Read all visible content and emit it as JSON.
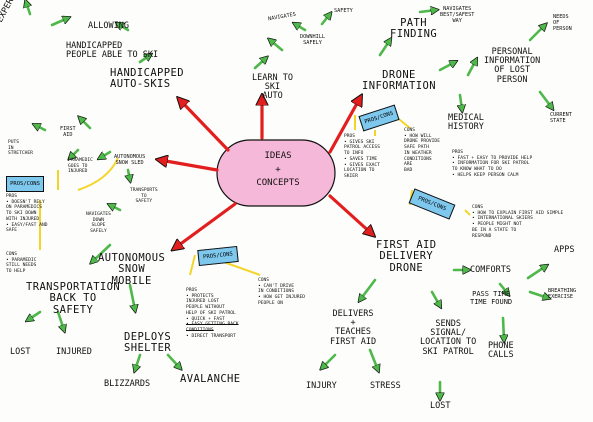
{
  "center": {
    "line1": "Ideas",
    "line2": "+",
    "line3": "Concepts"
  },
  "colors": {
    "center_fill": "#f5b8d8",
    "red_arrow": "#e31e1e",
    "green_arrow": "#4fb84a",
    "pros_box": "#7ec8ee",
    "yellow_line": "#f3d52a"
  },
  "experience": "Experience",
  "allowing": "Allowing",
  "handicapped_people": {
    "line1": "Handicapped",
    "line2": "People able to ski"
  },
  "handicapped_ski": {
    "line1": "Handicapped",
    "line2": "Auto-Skis"
  },
  "navigates": "Navigates",
  "safety": "Safety",
  "downhill_safely": {
    "line1": "Downhill",
    "line2": "Safely"
  },
  "learn_to_ski": {
    "line1": "Learn to",
    "line2": "Ski",
    "line3": "Auto"
  },
  "path_finding": {
    "line1": "Path",
    "line2": "Finding"
  },
  "navigates_best": {
    "line1": "Navigates",
    "line2": "Best/Safest",
    "line3": "Way"
  },
  "needs_of_person": {
    "line1": "Needs",
    "line2": "of",
    "line3": "Person"
  },
  "personal_info": {
    "line1": "Personal",
    "line2": "Information",
    "line3": "of Lost",
    "line4": "Person"
  },
  "current_state": {
    "line1": "Current",
    "line2": "State"
  },
  "medical_history": {
    "line1": "Medical",
    "line2": "History"
  },
  "drone_info": {
    "line1": "Drone",
    "line2": "Information"
  },
  "drone_pros_cons": "Pros/Cons",
  "drone_pros": {
    "title": "Pros",
    "items": [
      "• Gives Ski",
      "Patrol Access",
      "To Info",
      "• Saves Time",
      "• Gives Exact",
      "Location To",
      "Skier"
    ]
  },
  "drone_cons": {
    "title": "Cons",
    "items": [
      "• How Will",
      "Drone Provide",
      "Safe Path",
      "In Weather",
      "Conditions",
      "Are",
      "Bad"
    ]
  },
  "medical_pros": {
    "title": "Pros",
    "items": [
      "• Fast + Easy To Provide Help",
      "• Information For Ski Patrol",
      "To Know What To Do",
      "• Helps Keep Person Calm"
    ]
  },
  "fa_pros_cons": "Pros/Cons",
  "fa_cons": {
    "title": "Cons",
    "items": [
      "• How To Explain First Aid Simple",
      "• International Skiers",
      "• People Might Not",
      "Be In A State To",
      "Respond"
    ]
  },
  "first_aid": {
    "line1": "First",
    "line2": "Aid"
  },
  "puts_stretcher": {
    "line1": "Puts",
    "line2": "In",
    "line3": "Stretcher"
  },
  "paramedic": {
    "line1": "Paramedic",
    "line2": "Goes To",
    "line3": "Injured"
  },
  "autonomous_sled": {
    "line1": "Autonomous",
    "line2": "Snow Sled"
  },
  "transports_safety": {
    "line1": "Transports",
    "line2": "To",
    "line3": "Safety"
  },
  "navigates_down": {
    "line1": "Navigates",
    "line2": "Down",
    "line3": "Slope",
    "line4": "Safely"
  },
  "sled_pros_cons": "Pros/Cons",
  "sled_pros": {
    "title": "Pros",
    "items": [
      "• Doesn't Rely",
      "On Paramedics",
      "To Ski Down",
      "With Injured",
      "• Easy/Fast And",
      "Safe"
    ]
  },
  "sled_cons": {
    "title": "Cons",
    "items": [
      "• Paramedic",
      "Still Needs",
      "To Help"
    ]
  },
  "autonomous_mobile": {
    "line1": "Autonomous",
    "line2": "Snow",
    "line3": "Mobile"
  },
  "transportation": {
    "line1": "Transportation",
    "line2": "Back to",
    "line3": "Safety"
  },
  "lost_left": "Lost",
  "injured_left": "Injured",
  "mobile_pros_cons": "Pros/Cons",
  "mobile_pros": {
    "title": "Pros",
    "items": [
      "• Protects",
      "Injured Lost",
      "People Without",
      "Help Of Ski Patrol",
      "• Quick + Fast",
      "• Easy Getting Back",
      "Conditions",
      "• Direct Transport"
    ]
  },
  "mobile_cons": {
    "title": "Cons",
    "items": [
      "• Can't Drive",
      "In Conditions",
      "• How Get Injured",
      "People On"
    ]
  },
  "deploys_shelter": {
    "line1": "Deploys",
    "line2": "Shelter"
  },
  "blizzards": "Blizzards",
  "avalanche": "Avalanche",
  "first_aid_drone": {
    "line1": "First Aid",
    "line2": "Delivery",
    "line3": "Drone"
  },
  "delivers": {
    "line1": "Delivers",
    "line2": "+",
    "line3": "Teaches",
    "line4": "First Aid"
  },
  "injury": "Injury",
  "stress": "Stress",
  "sends_signal": {
    "line1": "Sends",
    "line2": "Signal/",
    "line3": "Location to",
    "line4": "Ski Patrol"
  },
  "lost_bottom": "Lost",
  "comforts": "Comforts",
  "apps": "Apps",
  "pass_time": {
    "line1": "Pass Time",
    "line2": "Time Found"
  },
  "breathing": {
    "line1": "Breathing",
    "line2": "Exercise"
  },
  "phone_calls": {
    "line1": "Phone",
    "line2": "Calls"
  }
}
